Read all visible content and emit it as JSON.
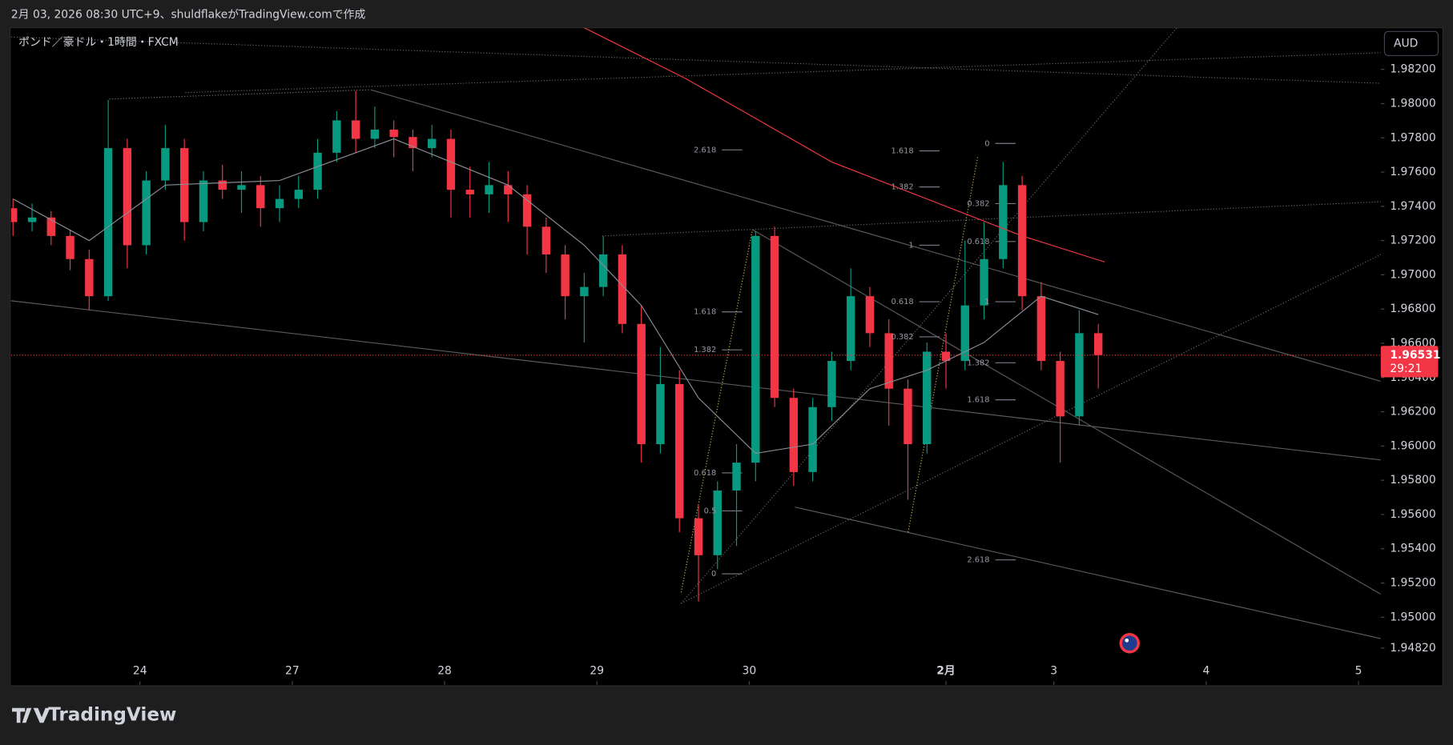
{
  "header": {
    "caption": "2月 03, 2026 08:30 UTC+9、shuldflakeがTradingView.comで作成",
    "brand": "TradingView"
  },
  "chart_data": {
    "type": "candlestick",
    "symbol": "ポンド／豪ドル・1時間・FXCM",
    "currency": "AUD",
    "up_color": "#089981",
    "down_color": "#f23645",
    "x": [
      -20,
      -17,
      -14,
      -11,
      -8,
      -5,
      -2,
      1,
      4,
      7,
      10,
      13,
      16,
      19,
      22,
      25,
      28,
      31,
      34,
      37,
      40,
      43,
      46,
      49,
      52,
      55,
      58,
      61,
      64,
      67,
      70,
      73,
      76,
      79,
      82,
      85,
      88,
      91,
      94,
      97,
      100,
      103,
      106,
      109,
      112,
      115,
      118,
      121,
      124,
      127,
      130,
      133,
      136,
      139,
      142,
      145,
      148,
      151
    ],
    "open": [
      1.97389,
      1.97308,
      1.97335,
      1.97227,
      1.97092,
      1.96875,
      1.9774,
      1.97173,
      1.97551,
      1.9774,
      1.97308,
      1.97551,
      1.97497,
      1.97524,
      1.97389,
      1.97443,
      1.97497,
      1.97713,
      1.97902,
      1.97794,
      1.97848,
      1.97805,
      1.9774,
      1.97794,
      1.97497,
      1.9747,
      1.97524,
      1.9747,
      1.97281,
      1.97119,
      1.96875,
      1.96929,
      1.97119,
      1.96713,
      1.96011,
      1.96362,
      1.95578,
      1.95362,
      1.9574,
      1.95903,
      1.97227,
      1.96281,
      1.95848,
      1.96227,
      1.96497,
      1.96875,
      1.96659,
      1.96335,
      1.96011,
      1.96551,
      1.96497,
      1.96821,
      1.97092,
      1.97524,
      1.96875,
      1.96497,
      1.96173,
      1.96659
    ],
    "high": [
      1.97443,
      1.97416,
      1.97373,
      1.97265,
      1.97146,
      1.98021,
      1.97794,
      1.97605,
      1.97875,
      1.97794,
      1.97605,
      1.97643,
      1.97605,
      1.97578,
      1.97524,
      1.97578,
      1.97794,
      1.97956,
      1.98075,
      1.97983,
      1.97902,
      1.97848,
      1.97875,
      1.97848,
      1.97632,
      1.97659,
      1.97605,
      1.97524,
      1.97335,
      1.97173,
      1.97011,
      1.97227,
      1.97173,
      1.96821,
      1.96578,
      1.96443,
      1.95659,
      1.95794,
      1.96011,
      1.97254,
      1.97281,
      1.96335,
      1.96281,
      1.96551,
      1.97038,
      1.96929,
      1.9674,
      1.96389,
      1.96605,
      1.96659,
      1.972,
      1.97308,
      1.97659,
      1.97578,
      1.96957,
      1.96551,
      1.96794,
      1.96713
    ],
    "low": [
      1.97227,
      1.97254,
      1.97173,
      1.97027,
      1.96794,
      1.96848,
      1.97038,
      1.97119,
      1.97497,
      1.972,
      1.97254,
      1.97443,
      1.97362,
      1.97281,
      1.97308,
      1.97389,
      1.97443,
      1.97659,
      1.97713,
      1.9774,
      1.97686,
      1.97605,
      1.97686,
      1.97335,
      1.97335,
      1.97362,
      1.97308,
      1.97119,
      1.97011,
      1.9674,
      1.96605,
      1.96875,
      1.96659,
      1.95903,
      1.95957,
      1.95497,
      1.95092,
      1.95281,
      1.95416,
      1.95794,
      1.96227,
      1.95767,
      1.95794,
      1.96146,
      1.96443,
      1.96578,
      1.96119,
      1.95686,
      1.95957,
      1.96335,
      1.96443,
      1.9674,
      1.97038,
      1.96794,
      1.96443,
      1.95903,
      1.96119,
      1.96335
    ],
    "close": [
      1.97308,
      1.97335,
      1.97227,
      1.97092,
      1.96875,
      1.9774,
      1.97173,
      1.97551,
      1.9774,
      1.97308,
      1.97551,
      1.97497,
      1.97524,
      1.97389,
      1.97443,
      1.97497,
      1.97713,
      1.97902,
      1.97794,
      1.97848,
      1.97805,
      1.9774,
      1.97794,
      1.97497,
      1.9747,
      1.97524,
      1.9747,
      1.97281,
      1.97119,
      1.96875,
      1.96929,
      1.97119,
      1.96713,
      1.96011,
      1.96362,
      1.95578,
      1.95362,
      1.9574,
      1.95903,
      1.97227,
      1.96281,
      1.95848,
      1.96227,
      1.96497,
      1.96875,
      1.96659,
      1.96335,
      1.96011,
      1.96551,
      1.96497,
      1.96821,
      1.97092,
      1.97524,
      1.96875,
      1.96497,
      1.96173,
      1.96659,
      1.96531
    ],
    "lines": [
      {
        "color": "#f23645",
        "x": [
          70,
          86,
          95,
          109,
          124,
          139,
          152
        ],
        "values": [
          1.98443,
          1.98146,
          1.97956,
          1.97659,
          1.97443,
          1.97227,
          1.97075
        ]
      },
      {
        "color": "#8a8d96",
        "x": [
          -20,
          -8,
          4,
          22,
          40,
          58,
          70,
          79,
          88,
          97,
          106,
          115,
          124,
          133,
          142,
          151
        ],
        "values": [
          1.97443,
          1.972,
          1.97524,
          1.97551,
          1.97794,
          1.97524,
          1.97173,
          1.96821,
          1.96281,
          1.95957,
          1.96011,
          1.96335,
          1.96443,
          1.96605,
          1.96875,
          1.96768
        ]
      }
    ],
    "xlim": [
      -20.3,
      195.5
    ],
    "ylim": [
      1.94605,
      1.98443
    ],
    "xticks": [
      {
        "value": 0,
        "label": "24"
      },
      {
        "value": 24,
        "label": "27"
      },
      {
        "value": 48,
        "label": "28"
      },
      {
        "value": 72,
        "label": "29"
      },
      {
        "value": 96,
        "label": "30"
      },
      {
        "value": 127,
        "label": "2月"
      },
      {
        "value": 144,
        "label": "3"
      },
      {
        "value": 168,
        "label": "4"
      },
      {
        "value": 192,
        "label": "5"
      }
    ],
    "yticks": [
      {
        "value": 1.982,
        "label": "1.98200"
      },
      {
        "value": 1.98,
        "label": "1.98000"
      },
      {
        "value": 1.978,
        "label": "1.97800"
      },
      {
        "value": 1.976,
        "label": "1.97600"
      },
      {
        "value": 1.974,
        "label": "1.97400"
      },
      {
        "value": 1.972,
        "label": "1.97200"
      },
      {
        "value": 1.97,
        "label": "1.97000"
      },
      {
        "value": 1.968,
        "label": "1.96800"
      },
      {
        "value": 1.966,
        "label": "1.96600"
      },
      {
        "value": 1.964,
        "label": "1.96400"
      },
      {
        "value": 1.962,
        "label": "1.96200"
      },
      {
        "value": 1.96,
        "label": "1.96000"
      },
      {
        "value": 1.958,
        "label": "1.95800"
      },
      {
        "value": 1.956,
        "label": "1.95600"
      },
      {
        "value": 1.954,
        "label": "1.95400"
      },
      {
        "value": 1.952,
        "label": "1.95200"
      },
      {
        "value": 1.95,
        "label": "1.95000"
      },
      {
        "value": 1.9482,
        "label": "1.94820"
      }
    ],
    "last_price": 1.96531,
    "countdown": "29:21",
    "annotations": [
      "2.618",
      "1.618",
      "1.382",
      "0.618",
      "0.5",
      "0",
      "1.618",
      "1.382",
      "1",
      "0.618",
      "0.382",
      "0",
      "0.382",
      "0.618",
      "1",
      "1.382",
      "1.618",
      "2.618"
    ]
  }
}
